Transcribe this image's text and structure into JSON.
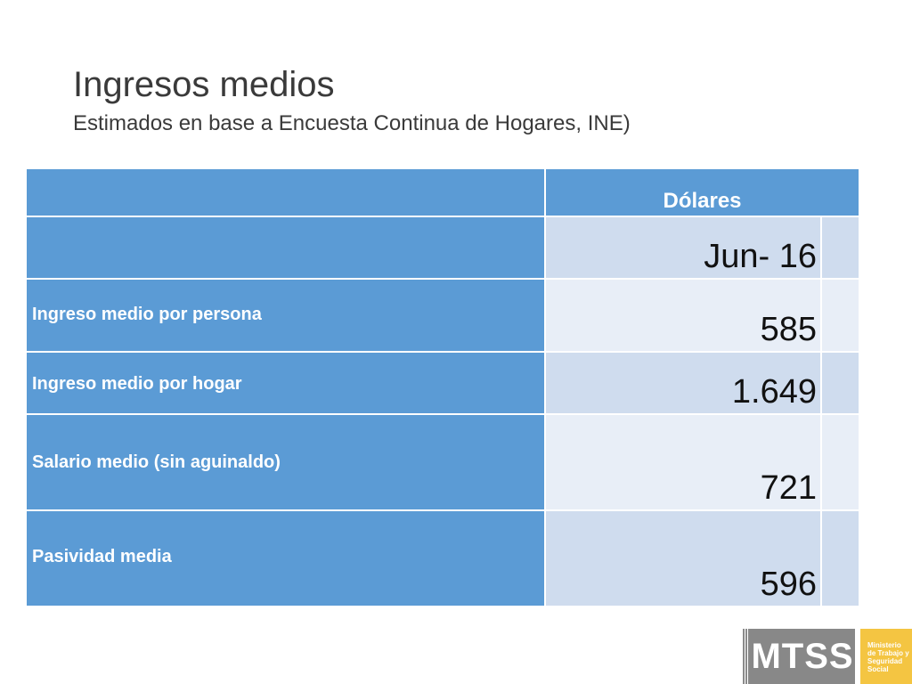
{
  "slide": {
    "title": "Ingresos medios",
    "subtitle": "Estimados en base a Encuesta Continua de Hogares, INE)"
  },
  "table": {
    "currency_header": "Dólares",
    "period": "Jun- 16",
    "rows": [
      {
        "label": "Ingreso medio por persona",
        "value": "585"
      },
      {
        "label": "Ingreso medio por hogar",
        "value": "1.649"
      },
      {
        "label": "Salario medio (sin aguinaldo)",
        "value": "721"
      },
      {
        "label": "Pasividad media",
        "value": "596"
      }
    ]
  },
  "logo": {
    "acronym": "MTSS",
    "line1": "Ministerio",
    "line2": "de Trabajo y",
    "line3": "Seguridad",
    "line4": "Social"
  },
  "colors": {
    "header_blue": "#5b9bd5",
    "row_dark": "#cfdcee",
    "row_light": "#e8eef7",
    "logo_gray": "#888888",
    "logo_yellow": "#f4c542"
  }
}
